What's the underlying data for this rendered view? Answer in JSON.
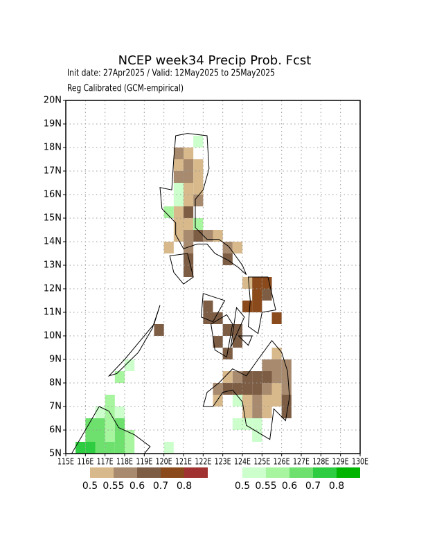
{
  "chart_data": {
    "type": "map",
    "title": "NCEP week34 Precip Prob. Fcst",
    "subtitle": "Init date: 27Apr2025 / Valid: 12May2025 to 25May2025",
    "note": "Reg Calibrated (GCM-empirical)",
    "xlim": [
      115,
      130
    ],
    "ylim": [
      5,
      20
    ],
    "xticks": [
      {
        "value": 115,
        "label": "115E"
      },
      {
        "value": 116,
        "label": "116E"
      },
      {
        "value": 117,
        "label": "117E"
      },
      {
        "value": 118,
        "label": "118E"
      },
      {
        "value": 119,
        "label": "119E"
      },
      {
        "value": 120,
        "label": "120E"
      },
      {
        "value": 121,
        "label": "121E"
      },
      {
        "value": 122,
        "label": "122E"
      },
      {
        "value": 123,
        "label": "123E"
      },
      {
        "value": 124,
        "label": "124E"
      },
      {
        "value": 125,
        "label": "125E"
      },
      {
        "value": 126,
        "label": "126E"
      },
      {
        "value": 127,
        "label": "127E"
      },
      {
        "value": 128,
        "label": "128E"
      },
      {
        "value": 129,
        "label": "129E"
      },
      {
        "value": 130,
        "label": "130E"
      }
    ],
    "yticks": [
      {
        "value": 5,
        "label": "5N"
      },
      {
        "value": 6,
        "label": "6N"
      },
      {
        "value": 7,
        "label": "7N"
      },
      {
        "value": 8,
        "label": "8N"
      },
      {
        "value": 9,
        "label": "9N"
      },
      {
        "value": 10,
        "label": "10N"
      },
      {
        "value": 11,
        "label": "11N"
      },
      {
        "value": 12,
        "label": "12N"
      },
      {
        "value": 13,
        "label": "13N"
      },
      {
        "value": 14,
        "label": "14N"
      },
      {
        "value": 15,
        "label": "15N"
      },
      {
        "value": 16,
        "label": "16N"
      },
      {
        "value": 17,
        "label": "17N"
      },
      {
        "value": 18,
        "label": "18N"
      },
      {
        "value": 19,
        "label": "19N"
      },
      {
        "value": 20,
        "label": "20N"
      }
    ],
    "grid": true,
    "cell_size": 0.5,
    "dry_levels": [
      0.5,
      0.55,
      0.6,
      0.7,
      0.8
    ],
    "dry_colors": [
      "#d8b98b",
      "#a88a6e",
      "#7d5d44",
      "#8a4a1c",
      "#a03232"
    ],
    "wet_levels": [
      0.5,
      0.55,
      0.6,
      0.7,
      0.8
    ],
    "wet_colors": [
      "#ccffcc",
      "#a8f5a0",
      "#6ee06e",
      "#2ecc40",
      "#00b400"
    ],
    "dry_cells": [
      {
        "lon": 120.5,
        "lat": 17.5,
        "value": 0.55
      },
      {
        "lon": 121,
        "lat": 17.5,
        "value": 0.5
      },
      {
        "lon": 120.5,
        "lat": 17,
        "value": 0.5
      },
      {
        "lon": 121,
        "lat": 17,
        "value": 0.55
      },
      {
        "lon": 121.5,
        "lat": 17,
        "value": 0.5
      },
      {
        "lon": 120.5,
        "lat": 16.5,
        "value": 0.55
      },
      {
        "lon": 121,
        "lat": 16.5,
        "value": 0.55
      },
      {
        "lon": 121.5,
        "lat": 16.5,
        "value": 0.5
      },
      {
        "lon": 121,
        "lat": 16,
        "value": 0.5
      },
      {
        "lon": 121.5,
        "lat": 16,
        "value": 0.5
      },
      {
        "lon": 121,
        "lat": 15.5,
        "value": 0.5
      },
      {
        "lon": 121.5,
        "lat": 15.5,
        "value": 0.55
      },
      {
        "lon": 120.5,
        "lat": 15,
        "value": 0.5
      },
      {
        "lon": 121,
        "lat": 15,
        "value": 0.6
      },
      {
        "lon": 120.5,
        "lat": 14.5,
        "value": 0.5
      },
      {
        "lon": 121,
        "lat": 14.5,
        "value": 0.5
      },
      {
        "lon": 120.5,
        "lat": 14,
        "value": 0.5
      },
      {
        "lon": 121,
        "lat": 14,
        "value": 0.55
      },
      {
        "lon": 121.5,
        "lat": 14,
        "value": 0.6
      },
      {
        "lon": 122,
        "lat": 14,
        "value": 0.55
      },
      {
        "lon": 122.5,
        "lat": 14,
        "value": 0.5
      },
      {
        "lon": 120,
        "lat": 13.5,
        "value": 0.5
      },
      {
        "lon": 121,
        "lat": 13.5,
        "value": 0.55
      },
      {
        "lon": 123,
        "lat": 13.5,
        "value": 0.55
      },
      {
        "lon": 123.5,
        "lat": 13.5,
        "value": 0.5
      },
      {
        "lon": 121,
        "lat": 13,
        "value": 0.6
      },
      {
        "lon": 123,
        "lat": 13,
        "value": 0.6
      },
      {
        "lon": 121,
        "lat": 12.5,
        "value": 0.6
      },
      {
        "lon": 124,
        "lat": 12,
        "value": 0.5
      },
      {
        "lon": 124.5,
        "lat": 12,
        "value": 0.7
      },
      {
        "lon": 125,
        "lat": 12,
        "value": 0.7
      },
      {
        "lon": 124.5,
        "lat": 11.5,
        "value": 0.7
      },
      {
        "lon": 125,
        "lat": 11.5,
        "value": 0.6
      },
      {
        "lon": 122,
        "lat": 11,
        "value": 0.6
      },
      {
        "lon": 124,
        "lat": 11,
        "value": 0.7
      },
      {
        "lon": 124.5,
        "lat": 11,
        "value": 0.7
      },
      {
        "lon": 122,
        "lat": 10.5,
        "value": 0.6
      },
      {
        "lon": 122.5,
        "lat": 10.5,
        "value": 0.6
      },
      {
        "lon": 125.5,
        "lat": 10.5,
        "value": 0.7
      },
      {
        "lon": 119.5,
        "lat": 10,
        "value": 0.6
      },
      {
        "lon": 123,
        "lat": 10,
        "value": 0.6
      },
      {
        "lon": 123.5,
        "lat": 10,
        "value": 0.6
      },
      {
        "lon": 122.5,
        "lat": 9.5,
        "value": 0.6
      },
      {
        "lon": 123.5,
        "lat": 9.5,
        "value": 0.6
      },
      {
        "lon": 123,
        "lat": 9,
        "value": 0.6
      },
      {
        "lon": 125.5,
        "lat": 9,
        "value": 0.5
      },
      {
        "lon": 125,
        "lat": 8.5,
        "value": 0.55
      },
      {
        "lon": 125.5,
        "lat": 8.5,
        "value": 0.55
      },
      {
        "lon": 126,
        "lat": 8.5,
        "value": 0.55
      },
      {
        "lon": 123,
        "lat": 8,
        "value": 0.5
      },
      {
        "lon": 123.5,
        "lat": 8,
        "value": 0.55
      },
      {
        "lon": 124,
        "lat": 8,
        "value": 0.6
      },
      {
        "lon": 124.5,
        "lat": 8,
        "value": 0.6
      },
      {
        "lon": 125,
        "lat": 8,
        "value": 0.6
      },
      {
        "lon": 125.5,
        "lat": 8,
        "value": 0.55
      },
      {
        "lon": 126,
        "lat": 8,
        "value": 0.55
      },
      {
        "lon": 122.5,
        "lat": 7.5,
        "value": 0.55
      },
      {
        "lon": 123,
        "lat": 7.5,
        "value": 0.6
      },
      {
        "lon": 123.5,
        "lat": 7.5,
        "value": 0.6
      },
      {
        "lon": 124,
        "lat": 7.5,
        "value": 0.6
      },
      {
        "lon": 124.5,
        "lat": 7.5,
        "value": 0.6
      },
      {
        "lon": 125,
        "lat": 7.5,
        "value": 0.55
      },
      {
        "lon": 125.5,
        "lat": 7.5,
        "value": 0.5
      },
      {
        "lon": 126,
        "lat": 7.5,
        "value": 0.55
      },
      {
        "lon": 122.5,
        "lat": 7,
        "value": 0.5
      },
      {
        "lon": 124,
        "lat": 7,
        "value": 0.5
      },
      {
        "lon": 124.5,
        "lat": 7,
        "value": 0.55
      },
      {
        "lon": 125,
        "lat": 7,
        "value": 0.5
      },
      {
        "lon": 125.5,
        "lat": 7,
        "value": 0.5
      },
      {
        "lon": 126,
        "lat": 7,
        "value": 0.6
      },
      {
        "lon": 124,
        "lat": 6.5,
        "value": 0.5
      },
      {
        "lon": 124.5,
        "lat": 6.5,
        "value": 0.55
      },
      {
        "lon": 125,
        "lat": 6.5,
        "value": 0.5
      },
      {
        "lon": 126,
        "lat": 6.5,
        "value": 0.6
      }
    ],
    "wet_cells": [
      {
        "lon": 121.5,
        "lat": 18,
        "value": 0.5
      },
      {
        "lon": 120.5,
        "lat": 16,
        "value": 0.5
      },
      {
        "lon": 120.5,
        "lat": 15.5,
        "value": 0.5
      },
      {
        "lon": 120,
        "lat": 15,
        "value": 0.55
      },
      {
        "lon": 121.5,
        "lat": 14.5,
        "value": 0.55
      },
      {
        "lon": 118,
        "lat": 8.5,
        "value": 0.5
      },
      {
        "lon": 117.5,
        "lat": 8,
        "value": 0.55
      },
      {
        "lon": 117,
        "lat": 7,
        "value": 0.55
      },
      {
        "lon": 123.5,
        "lat": 7,
        "value": 0.5
      },
      {
        "lon": 116.5,
        "lat": 6.5,
        "value": 0.5
      },
      {
        "lon": 117,
        "lat": 6.5,
        "value": 0.55
      },
      {
        "lon": 117.5,
        "lat": 6.5,
        "value": 0.5
      },
      {
        "lon": 116,
        "lat": 6,
        "value": 0.6
      },
      {
        "lon": 116.5,
        "lat": 6,
        "value": 0.6
      },
      {
        "lon": 117,
        "lat": 6,
        "value": 0.55
      },
      {
        "lon": 117.5,
        "lat": 6,
        "value": 0.6
      },
      {
        "lon": 123.5,
        "lat": 6,
        "value": 0.5
      },
      {
        "lon": 124,
        "lat": 6,
        "value": 0.5
      },
      {
        "lon": 124.5,
        "lat": 6,
        "value": 0.5
      },
      {
        "lon": 116,
        "lat": 5.5,
        "value": 0.6
      },
      {
        "lon": 116.5,
        "lat": 5.5,
        "value": 0.6
      },
      {
        "lon": 117,
        "lat": 5.5,
        "value": 0.55
      },
      {
        "lon": 117.5,
        "lat": 5.5,
        "value": 0.6
      },
      {
        "lon": 118,
        "lat": 5.5,
        "value": 0.55
      },
      {
        "lon": 124.5,
        "lat": 5.5,
        "value": 0.5
      },
      {
        "lon": 115.5,
        "lat": 5,
        "value": 0.7
      },
      {
        "lon": 116,
        "lat": 5,
        "value": 0.7
      },
      {
        "lon": 116.5,
        "lat": 5,
        "value": 0.6
      },
      {
        "lon": 117,
        "lat": 5,
        "value": 0.6
      },
      {
        "lon": 117.5,
        "lat": 5,
        "value": 0.6
      },
      {
        "lon": 118,
        "lat": 5,
        "value": 0.55
      },
      {
        "lon": 120,
        "lat": 5,
        "value": 0.5
      }
    ]
  }
}
